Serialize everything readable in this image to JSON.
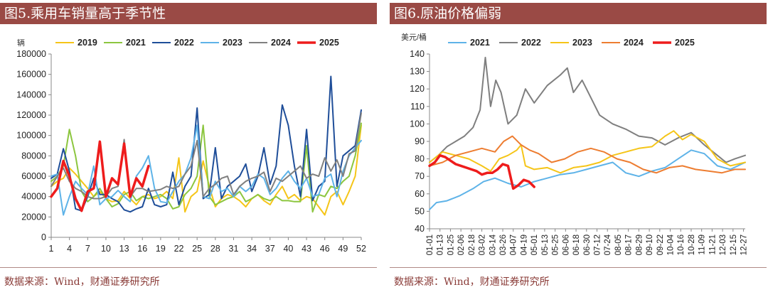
{
  "left": {
    "header": "图5.乘用车销量高于季节性",
    "source": "数据来源：Wind，财通证券研究所",
    "chart_data": {
      "type": "line",
      "ylabel": "辆",
      "ylim": [
        0,
        180000
      ],
      "yticks": [
        "0",
        "20000",
        "40000",
        "60000",
        "80000",
        "100000",
        "120000",
        "140000",
        "160000",
        "180000"
      ],
      "xticks": [
        "1",
        "4",
        "7",
        "10",
        "13",
        "16",
        "19",
        "22",
        "25",
        "28",
        "31",
        "34",
        "37",
        "40",
        "43",
        "46",
        "49",
        "52"
      ],
      "xlim": [
        1,
        52
      ],
      "series": [
        {
          "name": "2019",
          "color": "#f5c518",
          "width": 2,
          "x": [
            1,
            2,
            3,
            4,
            5,
            6,
            7,
            8,
            9,
            10,
            11,
            12,
            13,
            14,
            15,
            16,
            17,
            18,
            19,
            20,
            21,
            22,
            23,
            24,
            25,
            26,
            27,
            28,
            29,
            30,
            31,
            32,
            33,
            34,
            35,
            36,
            37,
            38,
            39,
            40,
            41,
            42,
            43,
            44,
            45,
            46,
            47,
            48,
            49,
            50,
            51,
            52
          ],
          "values": [
            50000,
            55000,
            58000,
            68000,
            62000,
            55000,
            48000,
            40000,
            45000,
            38000,
            35000,
            36000,
            45000,
            38000,
            32000,
            40000,
            42000,
            38000,
            40000,
            45000,
            38000,
            78000,
            25000,
            40000,
            45000,
            75000,
            50000,
            30000,
            38000,
            42000,
            40000,
            36000,
            30000,
            38000,
            42000,
            36000,
            32000,
            42000,
            50000,
            38000,
            42000,
            36000,
            40000,
            38000,
            30000,
            22000,
            40000,
            45000,
            32000,
            45000,
            60000,
            110000
          ]
        },
        {
          "name": "2021",
          "color": "#8cc63f",
          "width": 2,
          "x": [
            1,
            2,
            3,
            4,
            5,
            6,
            7,
            8,
            9,
            10,
            11,
            12,
            13,
            14,
            15,
            16,
            17,
            18,
            19,
            20,
            21,
            22,
            23,
            24,
            25,
            26,
            27,
            28,
            29,
            30,
            31,
            32,
            33,
            34,
            35,
            36,
            37,
            38,
            39,
            40,
            41,
            42,
            43,
            44,
            45,
            46,
            47,
            48,
            49,
            50,
            51,
            52
          ],
          "values": [
            55000,
            60000,
            70000,
            106000,
            80000,
            45000,
            35000,
            40000,
            48000,
            38000,
            30000,
            33000,
            42000,
            45000,
            36000,
            40000,
            38000,
            40000,
            42000,
            38000,
            28000,
            30000,
            42000,
            48000,
            60000,
            110000,
            40000,
            32000,
            35000,
            38000,
            40000,
            45000,
            35000,
            38000,
            42000,
            38000,
            36000,
            40000,
            36000,
            36000,
            35000,
            35000,
            90000,
            25000,
            42000,
            40000,
            50000,
            48000,
            55000,
            60000,
            80000,
            112000
          ]
        },
        {
          "name": "2022",
          "color": "#1f4e99",
          "width": 2,
          "x": [
            1,
            2,
            3,
            4,
            5,
            6,
            7,
            8,
            9,
            10,
            11,
            12,
            13,
            14,
            15,
            16,
            17,
            18,
            19,
            20,
            21,
            22,
            23,
            24,
            25,
            26,
            27,
            28,
            29,
            30,
            31,
            32,
            33,
            34,
            35,
            36,
            37,
            38,
            39,
            40,
            41,
            42,
            43,
            44,
            45,
            46,
            47,
            48,
            49,
            50,
            51,
            52
          ],
          "values": [
            58000,
            62000,
            87000,
            65000,
            28000,
            26000,
            40000,
            58000,
            42000,
            42000,
            38000,
            35000,
            27000,
            25000,
            28000,
            30000,
            48000,
            32000,
            30000,
            32000,
            64000,
            32000,
            50000,
            60000,
            127000,
            38000,
            42000,
            88000,
            38000,
            50000,
            55000,
            60000,
            72000,
            45000,
            60000,
            88000,
            52000,
            70000,
            130000,
            110000,
            70000,
            40000,
            106000,
            36000,
            50000,
            55000,
            158000,
            50000,
            80000,
            85000,
            90000,
            125000
          ]
        },
        {
          "name": "2023",
          "color": "#5eb3e8",
          "width": 2,
          "x": [
            1,
            2,
            3,
            4,
            5,
            6,
            7,
            8,
            9,
            10,
            11,
            12,
            13,
            14,
            15,
            16,
            17,
            18,
            19,
            20,
            21,
            22,
            23,
            24,
            25,
            26,
            27,
            28,
            29,
            30,
            31,
            32,
            33,
            34,
            35,
            36,
            37,
            38,
            39,
            40,
            41,
            42,
            43,
            44,
            45,
            46,
            47,
            48,
            49,
            50,
            51,
            52
          ],
          "values": [
            60000,
            62000,
            22000,
            40000,
            55000,
            48000,
            42000,
            70000,
            32000,
            38000,
            40000,
            46000,
            40000,
            35000,
            60000,
            68000,
            80000,
            48000,
            35000,
            34000,
            45000,
            55000,
            62000,
            78000,
            110000,
            40000,
            38000,
            55000,
            45000,
            48000,
            40000,
            50000,
            45000,
            50000,
            62000,
            58000,
            42000,
            48000,
            58000,
            65000,
            55000,
            48000,
            58000,
            40000,
            42000,
            58000,
            62000,
            40000,
            65000,
            80000,
            88000,
            95000
          ]
        },
        {
          "name": "2024",
          "color": "#808080",
          "width": 2,
          "x": [
            1,
            2,
            3,
            4,
            5,
            6,
            7,
            8,
            9,
            10,
            11,
            12,
            13,
            14,
            15,
            16,
            17,
            18,
            19,
            20,
            21,
            22,
            23,
            24,
            25,
            26,
            27,
            28,
            29,
            30,
            31,
            32,
            33,
            34,
            35,
            36,
            37,
            38,
            39,
            40,
            41,
            42,
            43,
            44,
            45,
            46,
            47,
            48,
            49,
            50,
            51,
            52
          ],
          "values": [
            50000,
            60000,
            68000,
            55000,
            48000,
            45000,
            40000,
            38000,
            38000,
            40000,
            48000,
            50000,
            96000,
            40000,
            48000,
            48000,
            45000,
            46000,
            47000,
            50000,
            48000,
            50000,
            62000,
            70000,
            95000,
            40000,
            48000,
            52000,
            58000,
            60000,
            42000,
            50000,
            55000,
            58000,
            60000,
            64000,
            45000,
            58000,
            55000,
            60000,
            65000,
            70000,
            58000,
            62000,
            60000,
            78000,
            65000,
            76000,
            60000,
            82000,
            85000,
            122000
          ]
        },
        {
          "name": "2025",
          "color": "#ee1c1c",
          "width": 3.5,
          "x": [
            1,
            2,
            3,
            4,
            5,
            6,
            7,
            8,
            9,
            10,
            11,
            12,
            13,
            14,
            15,
            16,
            17
          ],
          "values": [
            40000,
            48000,
            75000,
            60000,
            38000,
            26000,
            45000,
            48000,
            94000,
            40000,
            58000,
            52000,
            92000,
            40000,
            58000,
            50000,
            70000
          ]
        }
      ]
    }
  },
  "right": {
    "header": "图6.原油价格偏弱",
    "source": "数据来源：Wind，财通证券研究所",
    "chart_data": {
      "type": "line",
      "ylabel": "美元/桶",
      "ylim": [
        40,
        140
      ],
      "yticks": [
        "40",
        "50",
        "60",
        "70",
        "80",
        "90",
        "100",
        "110",
        "120",
        "130",
        "140"
      ],
      "xticks": [
        "01-01",
        "01-13",
        "01-25",
        "02-06",
        "02-18",
        "03-02",
        "03-14",
        "03-26",
        "04-07",
        "04-19",
        "05-01",
        "05-13",
        "05-25",
        "06-06",
        "06-18",
        "06-30",
        "07-12",
        "07-24",
        "08-05",
        "08-17",
        "08-29",
        "09-10",
        "09-22",
        "10-04",
        "10-16",
        "10-28",
        "11-09",
        "11-21",
        "12-03",
        "12-15",
        "12-27"
      ],
      "xlim": [
        0,
        362
      ],
      "series": [
        {
          "name": "2021",
          "color": "#5eb3e8",
          "width": 2,
          "x": [
            0,
            8,
            20,
            35,
            50,
            62,
            75,
            90,
            105,
            120,
            135,
            150,
            165,
            180,
            195,
            210,
            225,
            240,
            255,
            270,
            285,
            300,
            315,
            330,
            345,
            362
          ],
          "values": [
            51,
            55,
            56,
            59,
            63,
            67,
            69,
            66,
            64,
            67,
            69,
            71,
            72,
            74,
            76,
            78,
            72,
            70,
            73,
            75,
            80,
            85,
            83,
            76,
            74,
            78
          ]
        },
        {
          "name": "2022",
          "color": "#7f7f7f",
          "width": 2,
          "x": [
            0,
            10,
            20,
            30,
            40,
            50,
            58,
            64,
            70,
            76,
            82,
            90,
            100,
            110,
            120,
            135,
            150,
            158,
            165,
            175,
            180,
            195,
            210,
            225,
            240,
            255,
            270,
            285,
            300,
            315,
            330,
            340,
            350,
            362
          ],
          "values": [
            78,
            82,
            87,
            90,
            93,
            98,
            108,
            138,
            110,
            125,
            118,
            100,
            105,
            120,
            112,
            122,
            128,
            132,
            118,
            125,
            120,
            105,
            100,
            97,
            93,
            92,
            88,
            92,
            95,
            88,
            82,
            78,
            80,
            82
          ]
        },
        {
          "name": "2023",
          "color": "#f5c518",
          "width": 2,
          "x": [
            0,
            15,
            30,
            45,
            60,
            70,
            80,
            90,
            100,
            105,
            110,
            120,
            135,
            150,
            165,
            180,
            195,
            210,
            225,
            240,
            255,
            270,
            280,
            290,
            300,
            315,
            330,
            345,
            362
          ],
          "values": [
            78,
            84,
            82,
            80,
            76,
            73,
            80,
            82,
            85,
            88,
            76,
            74,
            75,
            72,
            75,
            76,
            78,
            82,
            84,
            86,
            87,
            93,
            96,
            91,
            94,
            90,
            80,
            76,
            78
          ]
        },
        {
          "name": "2024",
          "color": "#ed7d31",
          "width": 2,
          "x": [
            0,
            15,
            30,
            45,
            60,
            75,
            85,
            95,
            105,
            115,
            125,
            140,
            155,
            170,
            185,
            200,
            215,
            230,
            245,
            260,
            275,
            290,
            305,
            320,
            335,
            350,
            362
          ],
          "values": [
            76,
            78,
            82,
            84,
            86,
            84,
            90,
            93,
            88,
            85,
            83,
            78,
            80,
            84,
            86,
            84,
            80,
            78,
            74,
            72,
            75,
            76,
            74,
            73,
            72,
            74,
            74
          ]
        },
        {
          "name": "2025",
          "color": "#ee1c1c",
          "width": 3.5,
          "x": [
            0,
            6,
            12,
            18,
            24,
            30,
            36,
            42,
            48,
            54,
            60,
            66,
            72,
            78,
            84,
            90,
            96,
            102,
            108,
            114,
            120
          ],
          "values": [
            76,
            78,
            82,
            81,
            79,
            77,
            76,
            75,
            74,
            73,
            71,
            72,
            72,
            74,
            77,
            76,
            63,
            65,
            68,
            67,
            64
          ]
        }
      ]
    }
  }
}
